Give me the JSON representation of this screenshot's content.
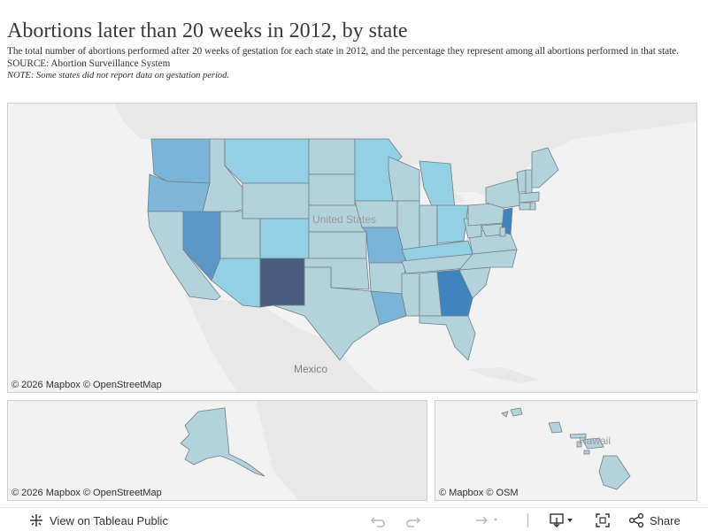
{
  "header": {
    "title": "Abortions later than 20 weeks in 2012, by state",
    "subtitle": "The total number of abortions performed after 20 weeks of gestation for each state in 2012, and the percentage they represent among all abortions performed in that state. SOURCE: Abortion Surveillance System",
    "note": "NOTE: Some states did not report data on gestation period."
  },
  "maps": {
    "main": {
      "credit": "© 2026 Mapbox  © OpenStreetMap",
      "label_country": "United States",
      "label_mexico": "Mexico"
    },
    "alaska": {
      "credit": "© 2026 Mapbox  © OpenStreetMap"
    },
    "hawaii": {
      "credit": "© Mapbox  © OSM",
      "label": "Hawaii"
    }
  },
  "colors": {
    "light": "#b3d2dc",
    "medium_light": "#94cfe3",
    "medium": "#7ab4d8",
    "strong": "#5b97c6",
    "stronger": "#3f84bf",
    "darkest": "#4a5d80",
    "land": "#e8e8e8",
    "water": "#f2f2f2"
  },
  "toolbar": {
    "view_label": "View on Tableau Public",
    "share_label": "Share",
    "icons": [
      "tableau-logo-icon",
      "undo-icon",
      "redo-icon",
      "revert-icon",
      "download-icon",
      "fullscreen-icon",
      "share-icon"
    ]
  }
}
